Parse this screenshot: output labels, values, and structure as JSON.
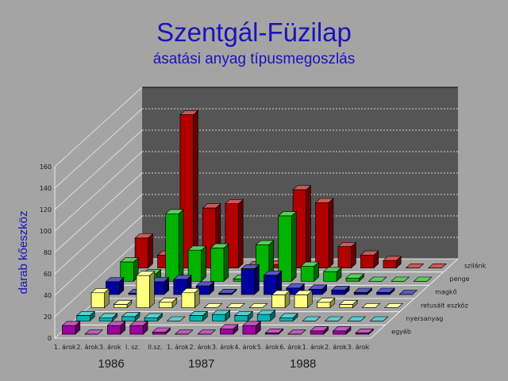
{
  "chart_data": {
    "type": "bar",
    "style": "3d-stacked-depth",
    "title": "Szentgál-Füzilap",
    "subtitle": "ásatási anyag típusmegoszlás",
    "ylabel": "darab kőeszköz",
    "ylim": [
      0,
      160
    ],
    "yticks": [
      "0",
      "20",
      "40",
      "60",
      "80",
      "100",
      "120",
      "140",
      "160"
    ],
    "categories": [
      "1. árok",
      "2. árok",
      "3. árok",
      "l. sz.",
      "ll.sz.",
      "1. árok",
      "2. árok",
      "3. árok",
      "4. árok",
      "5. árok",
      "6. árok",
      "1. árok",
      "2. árok",
      "3. árok"
    ],
    "years": [
      {
        "label": "1986",
        "from": 0,
        "to": 4
      },
      {
        "label": "1987",
        "from": 5,
        "to": 7
      },
      {
        "label": "1988",
        "from": 8,
        "to": 13
      }
    ],
    "series": [
      {
        "name": "egyéb",
        "color": "#a000a0",
        "values": [
          8,
          0,
          8,
          8,
          2,
          0,
          0,
          5,
          8,
          1,
          0,
          3,
          3,
          1
        ]
      },
      {
        "name": "nyersanyag",
        "color": "#00b4b4",
        "values": [
          5,
          3,
          4,
          3,
          0,
          5,
          6,
          5,
          6,
          3,
          0,
          0,
          0,
          0
        ]
      },
      {
        "name": "retusált eszköz",
        "color": "#ffff80",
        "values": [
          14,
          3,
          30,
          5,
          14,
          0,
          0,
          0,
          12,
          12,
          5,
          3,
          0,
          0
        ]
      },
      {
        "name": "magkő",
        "color": "#0000a0",
        "values": [
          12,
          1,
          12,
          14,
          8,
          1,
          24,
          18,
          6,
          5,
          4,
          2,
          2,
          0
        ]
      },
      {
        "name": "penge",
        "color": "#00b400",
        "values": [
          18,
          7,
          63,
          29,
          31,
          2,
          34,
          61,
          14,
          9,
          3,
          0,
          0,
          0
        ]
      },
      {
        "name": "szilánk",
        "color": "#b00000",
        "values": [
          28,
          12,
          143,
          56,
          60,
          2,
          3,
          73,
          61,
          20,
          12,
          7,
          0,
          0
        ]
      }
    ]
  }
}
